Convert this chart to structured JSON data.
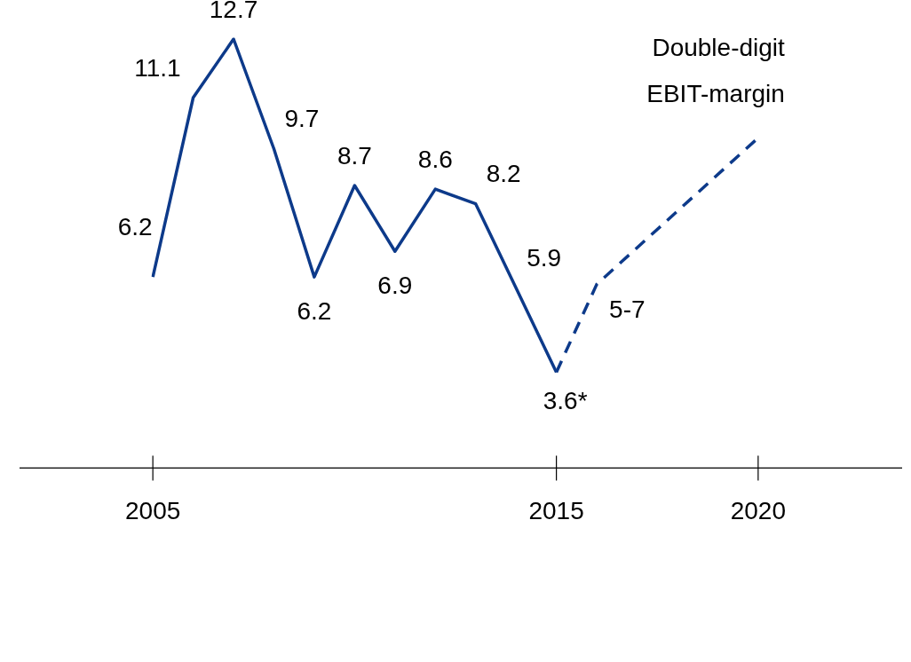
{
  "chart_data": {
    "type": "line",
    "categories": [
      "2005",
      null,
      null,
      null,
      null,
      null,
      null,
      null,
      null,
      null,
      "2015",
      null,
      null,
      null,
      null,
      "2020"
    ],
    "series": [
      {
        "color": "#0d3a8a",
        "line_style": "solid",
        "values": [
          6.2,
          11.1,
          12.7,
          9.7,
          6.2,
          8.7,
          6.9,
          8.6,
          8.2,
          5.9,
          3.6,
          null,
          null,
          null,
          null,
          null
        ],
        "value_labels": [
          "6.2",
          "11.1",
          "12.7",
          "9.7",
          "6.2",
          "8.7",
          "6.9",
          "8.6",
          "8.2",
          "5.9",
          "3.6*",
          null,
          null,
          null,
          null,
          null
        ]
      },
      {
        "color": "#0d3a8a",
        "line_style": "dashed",
        "values": [
          null,
          null,
          null,
          null,
          null,
          null,
          null,
          null,
          null,
          null,
          3.6,
          6,
          null,
          null,
          null,
          10
        ],
        "value_labels": [
          null,
          null,
          null,
          null,
          null,
          null,
          null,
          null,
          null,
          null,
          null,
          "5-7",
          null,
          null,
          null,
          null
        ]
      }
    ],
    "tick_labels": "x",
    "grid": false,
    "legend": false,
    "marker": "none",
    "annotations": [
      {
        "text": "Double-digit EBIT-margin",
        "x": "2020",
        "y": 10
      }
    ]
  }
}
